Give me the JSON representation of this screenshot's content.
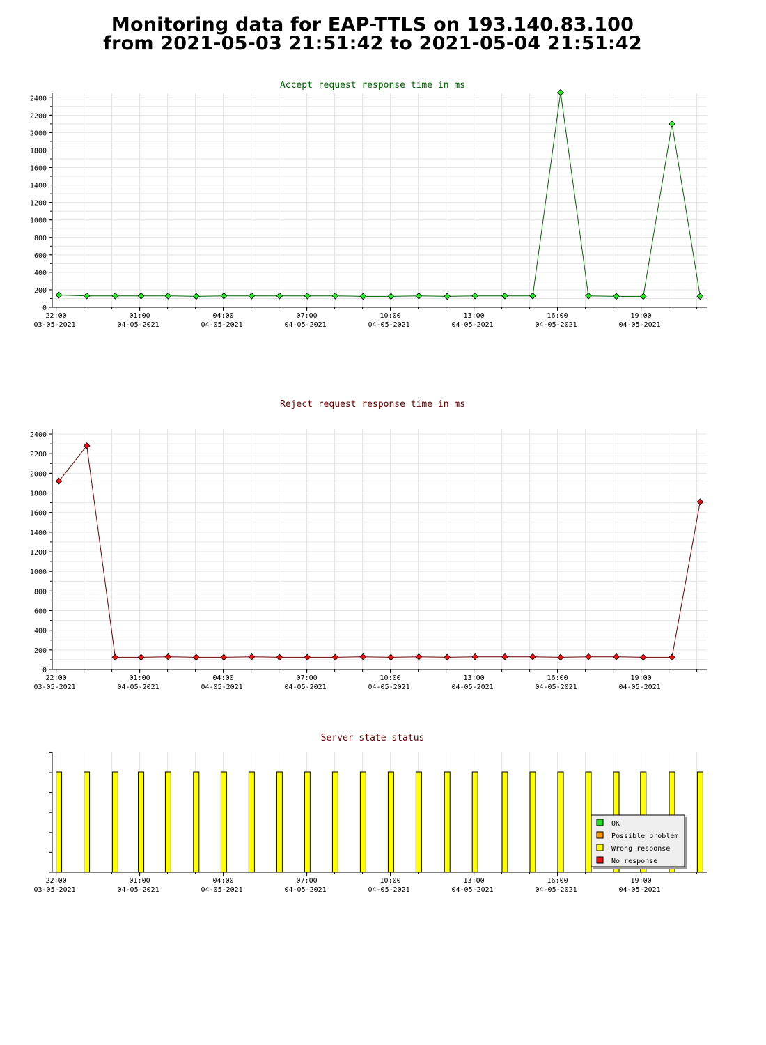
{
  "header": {
    "line1": "Monitoring data for EAP-TTLS on 193.140.83.100",
    "line2": "from 2021-05-03 21:51:42 to 2021-05-04 21:51:42"
  },
  "x_ticks": [
    {
      "time": "22:00",
      "date": "03-05-2021",
      "hour": 22.0
    },
    {
      "time": "01:00",
      "date": "04-05-2021",
      "hour": 25.0
    },
    {
      "time": "04:00",
      "date": "04-05-2021",
      "hour": 28.0
    },
    {
      "time": "07:00",
      "date": "04-05-2021",
      "hour": 31.0
    },
    {
      "time": "10:00",
      "date": "04-05-2021",
      "hour": 34.0
    },
    {
      "time": "13:00",
      "date": "04-05-2021",
      "hour": 37.0
    },
    {
      "time": "16:00",
      "date": "04-05-2021",
      "hour": 40.0
    },
    {
      "time": "19:00",
      "date": "04-05-2021",
      "hour": 43.0
    }
  ],
  "chart_data": [
    {
      "type": "line",
      "title": "Accept request response time in ms",
      "title_color": "#006400",
      "line_color": "#006400",
      "marker_color": "#22ee22",
      "xlim": [
        21.86,
        45.36
      ],
      "ylim": [
        0,
        2450
      ],
      "yticks": [
        0,
        200,
        400,
        600,
        800,
        1000,
        1200,
        1400,
        1600,
        1800,
        2000,
        2200,
        2400
      ],
      "x": [
        22.1,
        23.1,
        24.12,
        25.05,
        26.02,
        27.03,
        28.02,
        29.02,
        30.02,
        31.02,
        32.02,
        33.02,
        34.02,
        35.02,
        36.04,
        37.04,
        38.11,
        39.11,
        40.11,
        41.11,
        42.11,
        43.08,
        44.11,
        45.12
      ],
      "y": [
        140,
        130,
        130,
        130,
        130,
        125,
        130,
        130,
        130,
        130,
        130,
        125,
        125,
        130,
        125,
        130,
        130,
        130,
        2460,
        130,
        125,
        125,
        2100,
        125
      ]
    },
    {
      "type": "line",
      "title": "Reject request response time in ms",
      "title_color": "#6b0000",
      "line_color": "#6b0000",
      "marker_color": "#ee1111",
      "xlim": [
        21.86,
        45.36
      ],
      "ylim": [
        0,
        2450
      ],
      "yticks": [
        0,
        200,
        400,
        600,
        800,
        1000,
        1200,
        1400,
        1600,
        1800,
        2000,
        2200,
        2400
      ],
      "x": [
        22.1,
        23.1,
        24.12,
        25.05,
        26.02,
        27.03,
        28.02,
        29.02,
        30.02,
        31.02,
        32.02,
        33.02,
        34.02,
        35.02,
        36.04,
        37.04,
        38.11,
        39.11,
        40.11,
        41.11,
        42.11,
        43.08,
        44.11,
        45.12
      ],
      "y": [
        1920,
        2280,
        125,
        125,
        130,
        125,
        125,
        130,
        125,
        125,
        125,
        130,
        125,
        130,
        125,
        130,
        130,
        130,
        125,
        130,
        130,
        125,
        125,
        1710
      ]
    },
    {
      "type": "bar",
      "title": "Server state status",
      "title_color": "#6b0000",
      "xlim": [
        21.86,
        45.36
      ],
      "x": [
        22.1,
        23.1,
        24.12,
        25.05,
        26.02,
        27.03,
        28.02,
        29.02,
        30.02,
        31.02,
        32.02,
        33.02,
        34.02,
        35.02,
        36.04,
        37.04,
        38.11,
        39.11,
        40.11,
        41.11,
        42.11,
        43.08,
        44.11,
        45.12
      ],
      "state": "Wrong response",
      "legend": [
        {
          "label": "OK",
          "color": "#22dd22"
        },
        {
          "label": "Possible problem",
          "color": "#ff9900"
        },
        {
          "label": "Wrong response",
          "color": "#ffff00"
        },
        {
          "label": "No response",
          "color": "#ee1111"
        }
      ],
      "legend_position": "bottom-right"
    }
  ]
}
